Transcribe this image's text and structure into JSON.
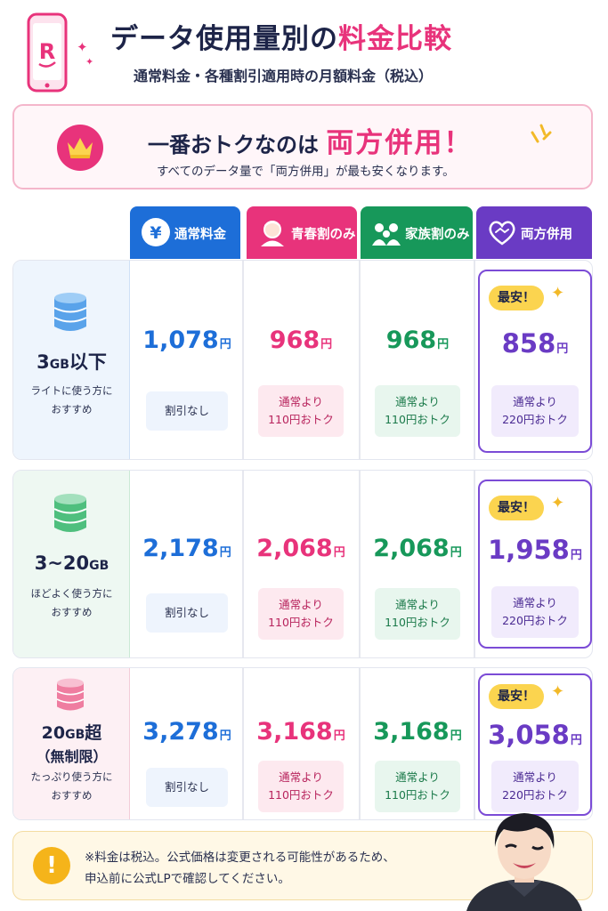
{
  "header": {
    "logo_letter": "R",
    "title_main": "データ使用量別の",
    "title_accent": "料金比較",
    "subtitle": "通常料金・各種割引適用時の月額料金（税込）"
  },
  "banner": {
    "head_prefix": "一番おトクなのは",
    "head_highlight": "両方併用！",
    "note": "すべてのデータ量で「両方併用」が最も安くなります。"
  },
  "columns": [
    {
      "label": "通常料金",
      "icon": "yen-icon",
      "color": "#1d6ed8"
    },
    {
      "label": "青春割のみ",
      "icon": "young-person-icon",
      "color": "#e8337b"
    },
    {
      "label": "家族割のみ",
      "icon": "family-icon",
      "color": "#17985a"
    },
    {
      "label": "両方併用",
      "icon": "heart-handshake-icon",
      "color": "#6a3bc4"
    }
  ],
  "rows": [
    {
      "gb": "3",
      "gb_unit": "GB",
      "gb_suffix": "以下",
      "gb_sub": "",
      "desc_line1": "ライトに使う方に",
      "desc_line2": "おすすめ",
      "normal_price": "1,078",
      "youth_price": "968",
      "family_price": "968",
      "both_price": "858",
      "normal_note": "割引なし",
      "youth_note_1": "通常より",
      "youth_note_2": "110円おトク",
      "family_note_1": "通常より",
      "family_note_2": "110円おトク",
      "both_note_1": "通常より",
      "both_note_2": "220円おトク",
      "best_tag": "最安！"
    },
    {
      "gb": "3~20",
      "gb_unit": "GB",
      "gb_suffix": "",
      "gb_sub": "",
      "desc_line1": "ほどよく使う方に",
      "desc_line2": "おすすめ",
      "normal_price": "2,178",
      "youth_price": "2,068",
      "family_price": "2,068",
      "both_price": "1,958",
      "normal_note": "割引なし",
      "youth_note_1": "通常より",
      "youth_note_2": "110円おトク",
      "family_note_1": "通常より",
      "family_note_2": "110円おトク",
      "both_note_1": "通常より",
      "both_note_2": "220円おトク",
      "best_tag": "最安！"
    },
    {
      "gb": "20",
      "gb_unit": "GB",
      "gb_suffix": "超",
      "gb_sub": "（無制限）",
      "desc_line1": "たっぷり使う方に",
      "desc_line2": "おすすめ",
      "normal_price": "3,278",
      "youth_price": "3,168",
      "family_price": "3,168",
      "both_price": "3,058",
      "normal_note": "割引なし",
      "youth_note_1": "通常より",
      "youth_note_2": "110円おトク",
      "family_note_1": "通常より",
      "family_note_2": "110円おトク",
      "both_note_1": "通常より",
      "both_note_2": "220円おトク",
      "best_tag": "最安！"
    }
  ],
  "currency": "円",
  "footer": {
    "line1": "※料金は税込。公式価格は変更される可能性があるため、",
    "line2": "申込前に公式LPで確認してください。"
  },
  "colors": {
    "normal": "#1d6ed8",
    "youth": "#e8337b",
    "family": "#17985a",
    "both": "#6a3bc4"
  }
}
